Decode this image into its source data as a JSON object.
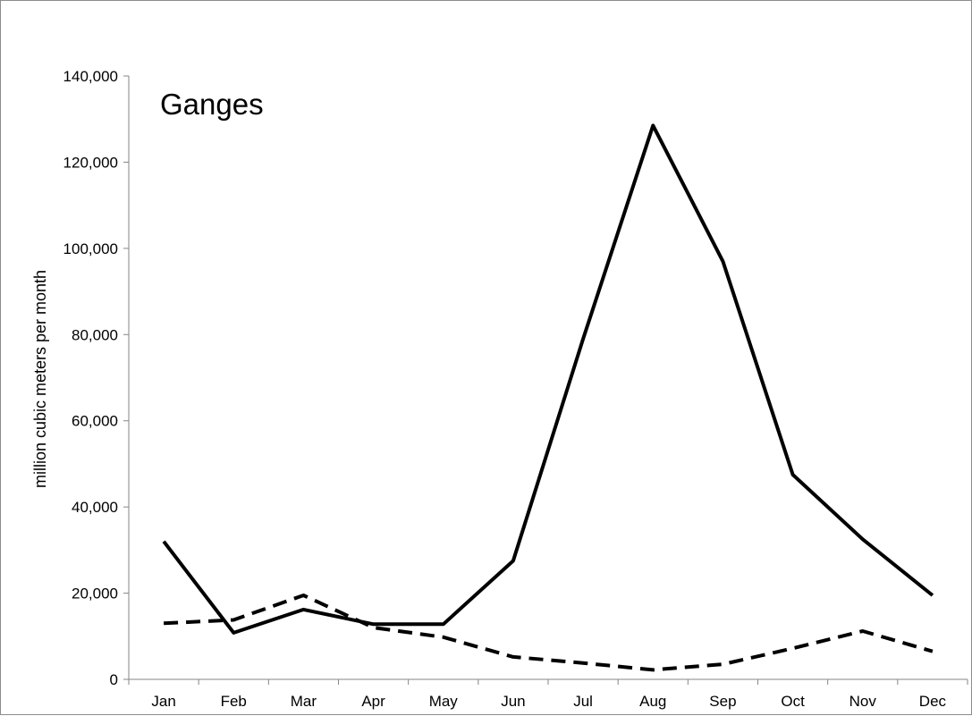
{
  "chart_data": {
    "type": "line",
    "title": "Ganges",
    "xlabel": "",
    "ylabel": "million cubic meters per month",
    "categories": [
      "Jan",
      "Feb",
      "Mar",
      "Apr",
      "May",
      "Jun",
      "Jul",
      "Aug",
      "Sep",
      "Oct",
      "Nov",
      "Dec"
    ],
    "ylim": [
      0,
      140000
    ],
    "yticks": [
      0,
      20000,
      40000,
      60000,
      80000,
      100000,
      120000,
      140000
    ],
    "ytick_labels": [
      "0",
      "20,000",
      "40,000",
      "60,000",
      "80,000",
      "100,000",
      "120,000",
      "140,000"
    ],
    "grid": false,
    "legend": "none",
    "series": [
      {
        "style": "solid",
        "color": "#000000",
        "values": [
          32000,
          10800,
          16200,
          12800,
          12800,
          27500,
          79000,
          128500,
          97000,
          47500,
          32500,
          19500
        ]
      },
      {
        "style": "dashed",
        "color": "#000000",
        "values": [
          13000,
          13800,
          19500,
          12000,
          9800,
          5200,
          3800,
          2200,
          3500,
          7200,
          11200,
          6500
        ]
      }
    ]
  }
}
